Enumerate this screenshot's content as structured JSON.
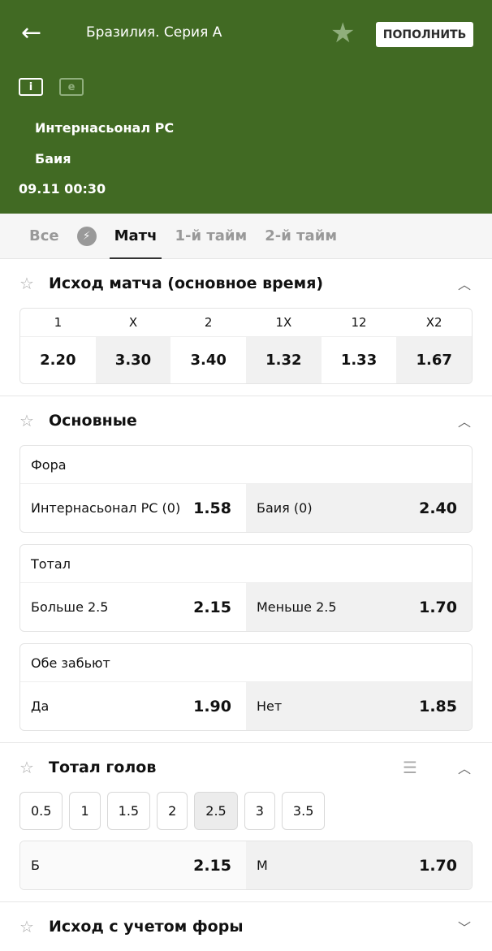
{
  "header": {
    "back_icon": "arrow-left-icon",
    "league": "Бразилия. Серия А",
    "favorite_icon": "star-icon",
    "topup_label": "ПОПОЛНИТЬ",
    "info_icon": "info-icon",
    "e_icon_label": "e",
    "team1": "Интернасьонал РС",
    "team2": "Баия",
    "datetime": "09.11 00:30"
  },
  "tabs": [
    {
      "label": "Все"
    },
    {
      "icon": "lightning-icon"
    },
    {
      "label": "Матч",
      "active": true
    },
    {
      "label": "1-й тайм"
    },
    {
      "label": "2-й тайм"
    }
  ],
  "outcome": {
    "title": "Исход матча (основное время)",
    "headers": [
      "1",
      "X",
      "2",
      "1X",
      "12",
      "X2"
    ],
    "odds": [
      "2.20",
      "3.30",
      "3.40",
      "1.32",
      "1.33",
      "1.67"
    ]
  },
  "main": {
    "title": "Основные",
    "markets": [
      {
        "title": "Фора",
        "left_label": "Интернасьонал РС (0)",
        "left_odd": "1.58",
        "right_label": "Баия (0)",
        "right_odd": "2.40"
      },
      {
        "title": "Тотал",
        "left_label": "Больше 2.5",
        "left_odd": "2.15",
        "right_label": "Меньше 2.5",
        "right_odd": "1.70"
      },
      {
        "title": "Обе забьют",
        "left_label": "Да",
        "left_odd": "1.90",
        "right_label": "Нет",
        "right_odd": "1.85"
      }
    ]
  },
  "total_goals": {
    "title": "Тотал голов",
    "lines": [
      "0.5",
      "1",
      "1.5",
      "2",
      "2.5",
      "3",
      "3.5"
    ],
    "selected": "2.5",
    "left_label": "Б",
    "left_odd": "2.15",
    "right_label": "М",
    "right_odd": "1.70"
  },
  "handicap": {
    "title": "Исход с учетом форы"
  },
  "colors": {
    "header_bg": "#416a23"
  }
}
